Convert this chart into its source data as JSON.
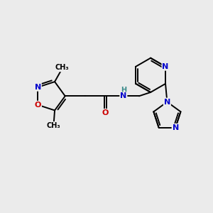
{
  "bg_color": "#ebebeb",
  "atom_colors": {
    "C": "#000000",
    "N": "#0000cc",
    "O": "#cc0000",
    "H": "#3a8a8a"
  },
  "bond_color": "#000000",
  "bond_width": 1.4,
  "figsize": [
    3.0,
    3.0
  ],
  "dpi": 100
}
